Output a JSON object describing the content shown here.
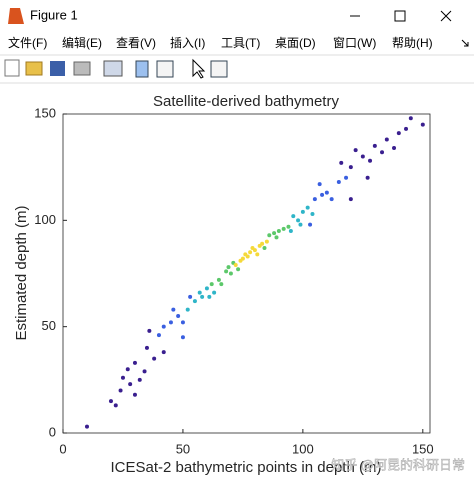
{
  "window": {
    "title": "Figure 1",
    "menu": [
      "文件(F)",
      "编辑(E)",
      "查看(V)",
      "插入(I)",
      "工具(T)",
      "桌面(D)",
      "窗口(W)",
      "帮助(H)"
    ]
  },
  "chart_data": {
    "type": "scatter",
    "title": "Satellite-derived bathymetry",
    "x_label": "ICESat-2 bathymetric points in depth (m)",
    "y_label": "Estimated depth (m)",
    "xlim": [
      0,
      153
    ],
    "ylim": [
      0,
      150
    ],
    "xticks": [
      0,
      50,
      100,
      150
    ],
    "yticks": [
      0,
      50,
      100,
      150
    ],
    "series": [
      {
        "color": "#3a1f8f",
        "x": [
          10,
          20,
          22,
          24,
          25,
          28,
          30,
          32,
          35,
          30,
          38,
          120,
          125,
          128,
          130,
          133,
          135,
          138,
          140,
          143,
          145,
          150,
          120,
          36,
          127,
          116,
          122,
          42,
          27,
          34
        ],
        "values": [
          3,
          15,
          13,
          20,
          26,
          23,
          33,
          25,
          40,
          18,
          35,
          125,
          130,
          128,
          135,
          132,
          138,
          134,
          141,
          143,
          148,
          145,
          110,
          48,
          120,
          127,
          133,
          38,
          30,
          29
        ]
      },
      {
        "color": "#3a5fe0",
        "x": [
          45,
          48,
          50,
          42,
          105,
          108,
          110,
          112,
          115,
          46,
          53,
          103,
          118,
          40,
          107,
          50
        ],
        "values": [
          52,
          55,
          52,
          50,
          110,
          112,
          113,
          110,
          118,
          58,
          64,
          98,
          120,
          46,
          117,
          45
        ]
      },
      {
        "color": "#2fb5c8",
        "x": [
          55,
          58,
          60,
          96,
          98,
          100,
          102,
          57,
          63,
          95,
          104,
          52,
          61,
          99
        ],
        "values": [
          62,
          64,
          68,
          102,
          100,
          104,
          106,
          66,
          66,
          95,
          103,
          58,
          64,
          98
        ]
      },
      {
        "color": "#5cc86a",
        "x": [
          65,
          68,
          70,
          88,
          90,
          92,
          86,
          66,
          71,
          94,
          62,
          73,
          84,
          89,
          69
        ],
        "values": [
          72,
          76,
          75,
          94,
          95,
          96,
          93,
          70,
          80,
          97,
          70,
          77,
          87,
          92,
          78
        ]
      },
      {
        "color": "#f5d93a",
        "x": [
          75,
          78,
          80,
          82,
          77,
          72,
          85,
          79,
          81,
          76,
          83,
          74
        ],
        "values": [
          82,
          85,
          86,
          88,
          83,
          79,
          90,
          87,
          84,
          84,
          89,
          81
        ]
      }
    ]
  },
  "watermark": "知乎 @阿昆的科研日常"
}
